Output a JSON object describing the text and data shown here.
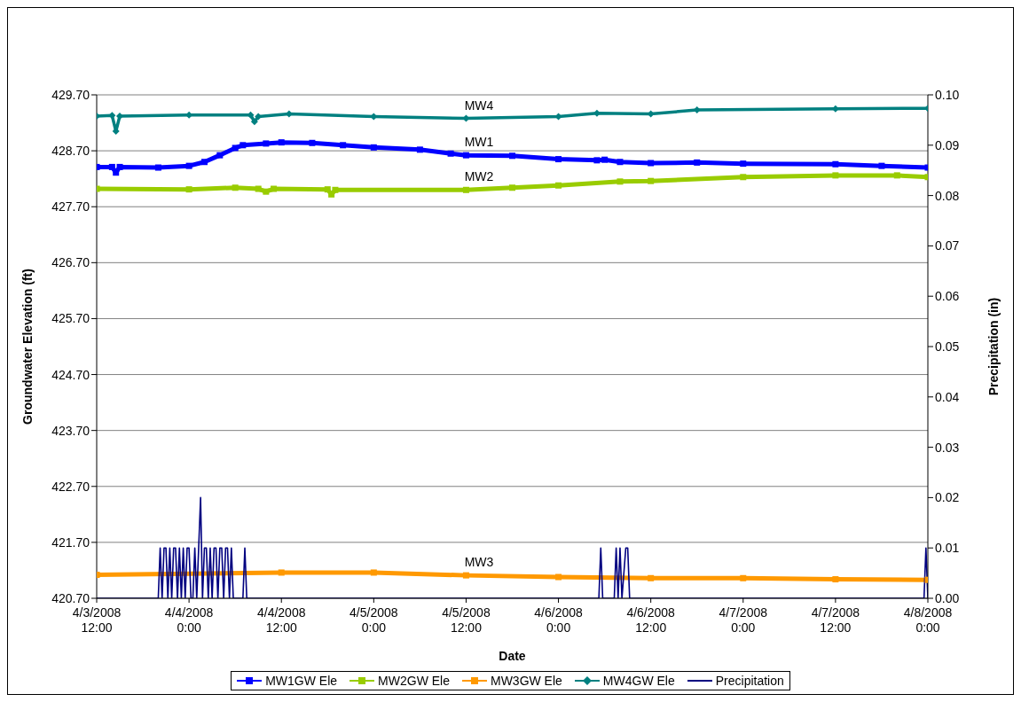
{
  "chart_data": {
    "type": "line",
    "xlabel": "Date",
    "ylabel": "Groundwater Elevation (ft)",
    "y2label": "Precipitation (in)",
    "xlim": [
      "2008-04-03T12:00",
      "2008-04-08T00:00"
    ],
    "xticks": [
      {
        "value": "2008-04-03T12:00",
        "label": "4/3/2008 12:00"
      },
      {
        "value": "2008-04-04T00:00",
        "label": "4/4/2008 0:00"
      },
      {
        "value": "2008-04-04T12:00",
        "label": "4/4/2008 12:00"
      },
      {
        "value": "2008-04-05T00:00",
        "label": "4/5/2008 0:00"
      },
      {
        "value": "2008-04-05T12:00",
        "label": "4/5/2008 12:00"
      },
      {
        "value": "2008-04-06T00:00",
        "label": "4/6/2008 0:00"
      },
      {
        "value": "2008-04-06T12:00",
        "label": "4/6/2008 12:00"
      },
      {
        "value": "2008-04-07T00:00",
        "label": "4/7/2008 0:00"
      },
      {
        "value": "2008-04-07T12:00",
        "label": "4/7/2008 12:00"
      },
      {
        "value": "2008-04-08T00:00",
        "label": "4/8/2008 0:00"
      }
    ],
    "ylim": [
      420.7,
      429.7
    ],
    "yticks": [
      {
        "value": 420.7,
        "label": "420.70"
      },
      {
        "value": 421.7,
        "label": "421.70"
      },
      {
        "value": 422.7,
        "label": "422.70"
      },
      {
        "value": 423.7,
        "label": "423.70"
      },
      {
        "value": 424.7,
        "label": "424.70"
      },
      {
        "value": 425.7,
        "label": "425.70"
      },
      {
        "value": 426.7,
        "label": "426.70"
      },
      {
        "value": 427.7,
        "label": "427.70"
      },
      {
        "value": 428.7,
        "label": "428.70"
      },
      {
        "value": 429.7,
        "label": "429.70"
      }
    ],
    "y2lim": [
      0,
      0.1
    ],
    "y2ticks": [
      {
        "value": 0,
        "label": "0.00"
      },
      {
        "value": 0.01,
        "label": "0.01"
      },
      {
        "value": 0.02,
        "label": "0.02"
      },
      {
        "value": 0.03,
        "label": "0.03"
      },
      {
        "value": 0.04,
        "label": "0.04"
      },
      {
        "value": 0.05,
        "label": "0.05"
      },
      {
        "value": 0.06,
        "label": "0.06"
      },
      {
        "value": 0.07,
        "label": "0.07"
      },
      {
        "value": 0.08,
        "label": "0.08"
      },
      {
        "value": 0.09,
        "label": "0.09"
      },
      {
        "value": 0.1,
        "label": "0.10"
      }
    ],
    "grid": "y",
    "legend": "bottom",
    "line_style": "solid",
    "annotations": [
      "MW1",
      "MW2",
      "MW3",
      "MW4"
    ],
    "series": [
      {
        "name": "MW1GW Ele",
        "color": "#0000ff",
        "marker": "square",
        "x": [
          "2008-04-03T12:00",
          "2008-04-03T14:00",
          "2008-04-03T14:30",
          "2008-04-03T15:00",
          "2008-04-03T20:00",
          "2008-04-04T00:00",
          "2008-04-04T02:00",
          "2008-04-04T04:00",
          "2008-04-04T06:00",
          "2008-04-04T07:00",
          "2008-04-04T10:00",
          "2008-04-04T12:00",
          "2008-04-04T16:00",
          "2008-04-04T20:00",
          "2008-04-05T00:00",
          "2008-04-05T06:00",
          "2008-04-05T10:00",
          "2008-04-05T12:00",
          "2008-04-05T18:00",
          "2008-04-06T00:00",
          "2008-04-06T05:00",
          "2008-04-06T06:00",
          "2008-04-06T08:00",
          "2008-04-06T12:00",
          "2008-04-06T18:00",
          "2008-04-07T00:00",
          "2008-04-07T12:00",
          "2008-04-07T18:00",
          "2008-04-08T00:00"
        ],
        "values": [
          428.41,
          428.41,
          428.31,
          428.41,
          428.4,
          428.43,
          428.5,
          428.62,
          428.75,
          428.8,
          428.83,
          428.85,
          428.84,
          428.8,
          428.76,
          428.72,
          428.65,
          428.62,
          428.61,
          428.55,
          428.53,
          428.54,
          428.5,
          428.48,
          428.49,
          428.47,
          428.46,
          428.43,
          428.4
        ]
      },
      {
        "name": "MW2GW Ele",
        "color": "#99cc00",
        "marker": "square",
        "x": [
          "2008-04-03T12:00",
          "2008-04-04T00:00",
          "2008-04-04T06:00",
          "2008-04-04T09:00",
          "2008-04-04T10:00",
          "2008-04-04T11:00",
          "2008-04-04T18:00",
          "2008-04-04T18:30",
          "2008-04-04T19:00",
          "2008-04-05T12:00",
          "2008-04-05T18:00",
          "2008-04-06T00:00",
          "2008-04-06T08:00",
          "2008-04-06T12:00",
          "2008-04-07T00:00",
          "2008-04-07T12:00",
          "2008-04-07T20:00",
          "2008-04-08T00:00"
        ],
        "values": [
          428.02,
          428.01,
          428.04,
          428.02,
          427.97,
          428.02,
          428.01,
          427.92,
          428.0,
          428.0,
          428.04,
          428.08,
          428.15,
          428.16,
          428.23,
          428.26,
          428.26,
          428.23
        ]
      },
      {
        "name": "MW3GW Ele",
        "color": "#ff9900",
        "marker": "square",
        "x": [
          "2008-04-03T12:00",
          "2008-04-04T12:00",
          "2008-04-05T00:00",
          "2008-04-05T12:00",
          "2008-04-06T00:00",
          "2008-04-06T12:00",
          "2008-04-07T00:00",
          "2008-04-07T12:00",
          "2008-04-08T00:00"
        ],
        "values": [
          421.12,
          421.16,
          421.16,
          421.11,
          421.08,
          421.06,
          421.06,
          421.04,
          421.03
        ]
      },
      {
        "name": "MW4GW Ele",
        "color": "#008080",
        "marker": "diamond",
        "x": [
          "2008-04-03T12:00",
          "2008-04-03T14:00",
          "2008-04-03T14:30",
          "2008-04-03T15:00",
          "2008-04-04T00:00",
          "2008-04-04T08:00",
          "2008-04-04T08:30",
          "2008-04-04T09:00",
          "2008-04-04T13:00",
          "2008-04-05T00:00",
          "2008-04-05T12:00",
          "2008-04-06T00:00",
          "2008-04-06T05:00",
          "2008-04-06T12:00",
          "2008-04-06T18:00",
          "2008-04-07T12:00",
          "2008-04-08T00:00"
        ],
        "values": [
          429.32,
          429.33,
          429.05,
          429.32,
          429.34,
          429.34,
          429.22,
          429.31,
          429.36,
          429.31,
          429.28,
          429.31,
          429.37,
          429.36,
          429.43,
          429.45,
          429.46
        ]
      },
      {
        "name": "Precipitation",
        "color": "#000080",
        "marker": "none",
        "axis": "y2",
        "x": [
          "2008-04-03T12:00",
          "2008-04-03T20:00",
          "2008-04-03T20:15",
          "2008-04-03T20:30",
          "2008-04-03T20:45",
          "2008-04-03T21:00",
          "2008-04-03T21:15",
          "2008-04-03T21:30",
          "2008-04-03T21:45",
          "2008-04-03T22:00",
          "2008-04-03T22:15",
          "2008-04-03T22:30",
          "2008-04-03T22:45",
          "2008-04-03T23:00",
          "2008-04-03T23:15",
          "2008-04-03T23:30",
          "2008-04-03T23:45",
          "2008-04-04T00:00",
          "2008-04-04T00:15",
          "2008-04-04T00:30",
          "2008-04-04T00:45",
          "2008-04-04T01:00",
          "2008-04-04T01:15",
          "2008-04-04T01:30",
          "2008-04-04T01:45",
          "2008-04-04T02:00",
          "2008-04-04T02:15",
          "2008-04-04T02:30",
          "2008-04-04T02:45",
          "2008-04-04T03:00",
          "2008-04-04T03:15",
          "2008-04-04T03:30",
          "2008-04-04T03:45",
          "2008-04-04T04:00",
          "2008-04-04T04:15",
          "2008-04-04T04:30",
          "2008-04-04T04:45",
          "2008-04-04T05:00",
          "2008-04-04T05:15",
          "2008-04-04T05:30",
          "2008-04-04T05:45",
          "2008-04-04T07:00",
          "2008-04-04T07:15",
          "2008-04-04T07:30",
          "2008-04-06T05:15",
          "2008-04-06T05:30",
          "2008-04-06T05:45",
          "2008-04-06T07:15",
          "2008-04-06T07:30",
          "2008-04-06T07:45",
          "2008-04-06T08:00",
          "2008-04-06T08:15",
          "2008-04-06T08:45",
          "2008-04-06T09:00",
          "2008-04-06T09:15",
          "2008-04-07T23:30",
          "2008-04-07T23:45",
          "2008-04-08T00:00"
        ],
        "values": [
          0,
          0,
          0.01,
          0,
          0.01,
          0.01,
          0,
          0.01,
          0,
          0.01,
          0.01,
          0,
          0.01,
          0,
          0.01,
          0,
          0.01,
          0.01,
          0,
          0,
          0.01,
          0,
          0.01,
          0.02,
          0,
          0.01,
          0.01,
          0,
          0.01,
          0,
          0.01,
          0.01,
          0,
          0.01,
          0.01,
          0,
          0.01,
          0.01,
          0,
          0.01,
          0,
          0,
          0.01,
          0,
          0,
          0.01,
          0,
          0,
          0.01,
          0,
          0.01,
          0,
          0.01,
          0.01,
          0,
          0,
          0.01,
          0
        ]
      }
    ]
  }
}
